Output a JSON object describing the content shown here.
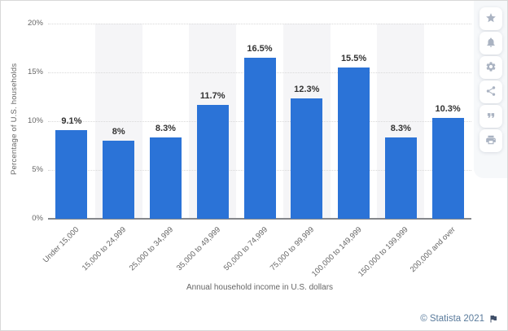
{
  "chart_data": {
    "type": "bar",
    "title": "",
    "categories": [
      "Under 15,000",
      "15,000 to 24,999",
      "25,000 to 34,999",
      "35,000 to 49,999",
      "50,000 to 74,999",
      "75,000 to 99,999",
      "100,000 to 149,999",
      "150,000 to 199,999",
      "200,000 and over"
    ],
    "values": [
      9.1,
      8,
      8.3,
      11.7,
      16.5,
      12.3,
      15.5,
      8.3,
      10.3
    ],
    "value_labels": [
      "9.1%",
      "8%",
      "8.3%",
      "11.7%",
      "16.5%",
      "12.3%",
      "15.5%",
      "8.3%",
      "10.3%"
    ],
    "xlabel": "Annual household income in U.S. dollars",
    "ylabel": "Percentage of U.S. households",
    "yticks": [
      "20%",
      "15%",
      "10%",
      "5%",
      "0%"
    ],
    "ylim": [
      0,
      20
    ],
    "grid": "dotted-horizontal",
    "legend": "none",
    "bar_color": "#2b73d7",
    "band_color": "#f5f5f7"
  },
  "toolbar": {
    "buttons": [
      {
        "name": "favorite",
        "icon": "star-icon"
      },
      {
        "name": "notifications",
        "icon": "bell-icon"
      },
      {
        "name": "settings",
        "icon": "gear-icon"
      },
      {
        "name": "share",
        "icon": "share-icon"
      },
      {
        "name": "cite",
        "icon": "quote-icon"
      },
      {
        "name": "print",
        "icon": "printer-icon"
      }
    ]
  },
  "footer": {
    "copyright": "© Statista 2021"
  }
}
